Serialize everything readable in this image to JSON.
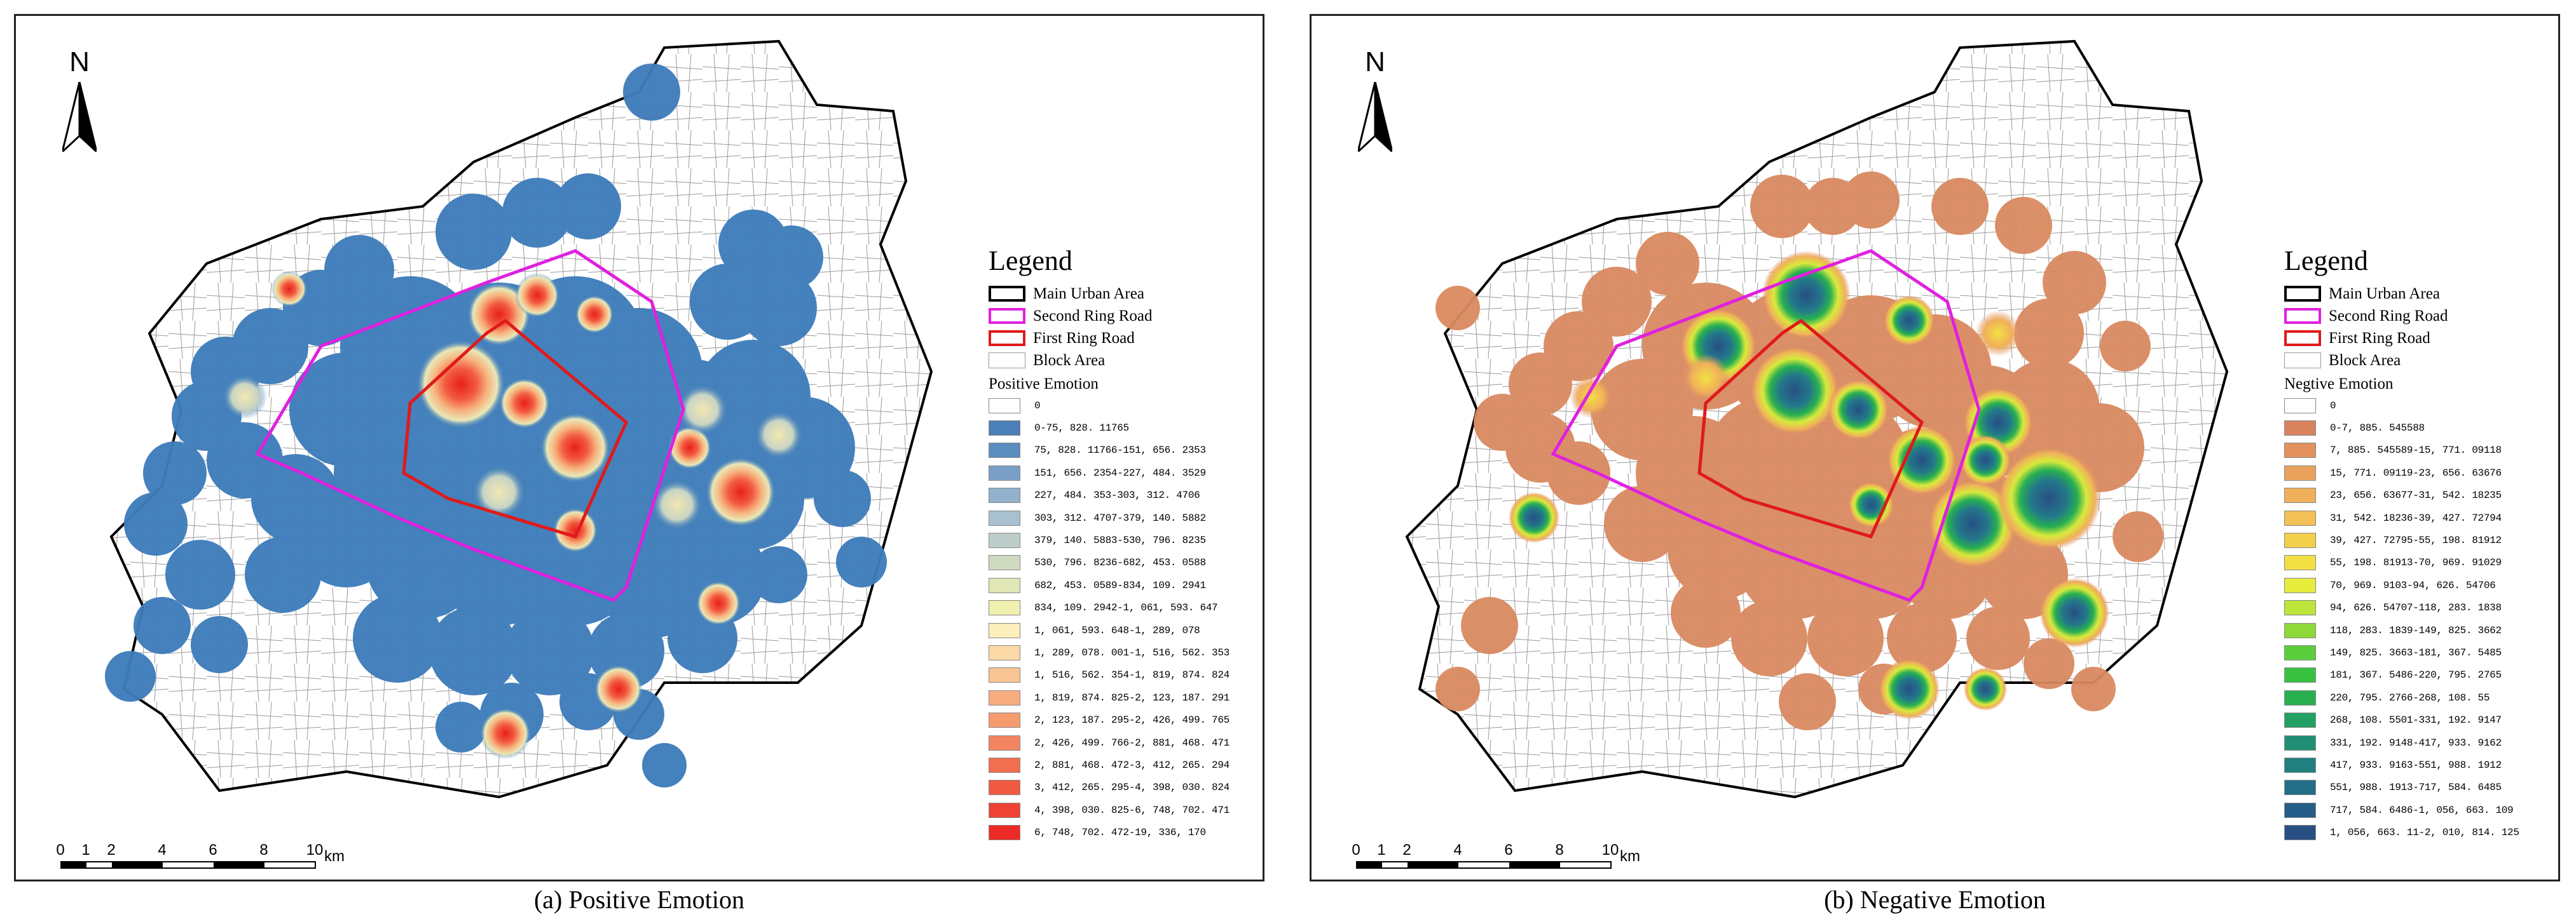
{
  "north_label": "N",
  "scale_bar": {
    "ticks": [
      "0",
      "1",
      "2",
      "4",
      "6",
      "8",
      "10"
    ],
    "unit": "km"
  },
  "legend": {
    "title": "Legend",
    "items": [
      {
        "label": "Main Urban Area",
        "stroke": "#000000"
      },
      {
        "label": "Second Ring Road",
        "stroke": "#e020e0"
      },
      {
        "label": "First Ring Road",
        "stroke": "#e01a1a"
      },
      {
        "label": "Block Area",
        "stroke": "#bbbbbb"
      }
    ]
  },
  "panels": [
    {
      "caption": "(a) Positive Emotion",
      "class_title": "Positive Emotion",
      "background_hotspot_color": "#3e7cba",
      "classes": [
        {
          "label": "0",
          "color": "#ffffff"
        },
        {
          "label": "0-75, 828. 11765",
          "color": "#4a7fb8"
        },
        {
          "label": "75, 828. 11766-151, 656. 2353",
          "color": "#5b8dbf"
        },
        {
          "label": "151, 656. 2354-227, 484. 3529",
          "color": "#7a9fc6"
        },
        {
          "label": "227, 484. 353-303, 312. 4706",
          "color": "#91b1cc"
        },
        {
          "label": "303, 312. 4707-379, 140. 5882",
          "color": "#a8c0cf"
        },
        {
          "label": "379, 140. 5883-530, 796. 8235",
          "color": "#bccdc9"
        },
        {
          "label": "530, 796. 8236-682, 453. 0588",
          "color": "#cfdac0"
        },
        {
          "label": "682, 453. 0589-834, 109. 2941",
          "color": "#e0e6b6"
        },
        {
          "label": "834, 109. 2942-1, 061, 593. 647",
          "color": "#f0f0b0"
        },
        {
          "label": "1, 061, 593. 648-1, 289, 078",
          "color": "#fbefbb"
        },
        {
          "label": "1, 289, 078. 001-1, 516, 562. 353",
          "color": "#fbd9a6"
        },
        {
          "label": "1, 516, 562. 354-1, 819, 874. 824",
          "color": "#f9c493"
        },
        {
          "label": "1, 819, 874. 825-2, 123, 187. 291",
          "color": "#f8ad80"
        },
        {
          "label": "2, 123, 187. 295-2, 426, 499. 765",
          "color": "#f69a70"
        },
        {
          "label": "2, 426, 499. 766-2, 881, 468. 471",
          "color": "#f48460"
        },
        {
          "label": "2, 881, 468. 472-3, 412, 265. 294",
          "color": "#f26e50"
        },
        {
          "label": "3, 412, 265. 295-4, 398, 030. 824",
          "color": "#f05942"
        },
        {
          "label": "4, 398, 030. 825-6, 748, 702. 471",
          "color": "#ee4334"
        },
        {
          "label": "6, 748, 702. 472-19, 336, 170",
          "color": "#ec2a26"
        }
      ]
    },
    {
      "caption": "(b) Negative Emotion",
      "class_title": "Negtive Emotion",
      "background_hotspot_color": "#d98a60",
      "classes": [
        {
          "label": "0",
          "color": "#ffffff"
        },
        {
          "label": "0-7, 885. 545588",
          "color": "#d9825e"
        },
        {
          "label": "7, 885. 545589-15, 771. 09118",
          "color": "#e2905e"
        },
        {
          "label": "15, 771. 09119-23, 656. 63676",
          "color": "#eaa15c"
        },
        {
          "label": "23, 656. 63677-31, 542. 18235",
          "color": "#f0b05a"
        },
        {
          "label": "31, 542. 18236-39, 427. 72794",
          "color": "#f3c055"
        },
        {
          "label": "39, 427. 72795-55, 198. 81912",
          "color": "#f3d04c"
        },
        {
          "label": "55, 198. 81913-70, 969. 91029",
          "color": "#f2e043"
        },
        {
          "label": "70, 969. 9103-94, 626. 54706",
          "color": "#e6ec3c"
        },
        {
          "label": "94, 626. 54707-118, 283. 1838",
          "color": "#bce43a"
        },
        {
          "label": "118, 283. 1839-149, 825. 3662",
          "color": "#8ed83a"
        },
        {
          "label": "149, 825. 3663-181, 367. 5485",
          "color": "#5ccd3c"
        },
        {
          "label": "181, 367. 5486-220, 795. 2765",
          "color": "#38c140"
        },
        {
          "label": "220, 795. 2766-268, 108. 55",
          "color": "#28b050"
        },
        {
          "label": "268, 108. 5501-331, 192. 9147",
          "color": "#22a064"
        },
        {
          "label": "331, 192. 9148-417, 933. 9162",
          "color": "#208f74"
        },
        {
          "label": "417, 933. 9163-551, 988. 1912",
          "color": "#217f80"
        },
        {
          "label": "551, 988. 1913-717, 584. 6485",
          "color": "#236e86"
        },
        {
          "label": "717, 584. 6486-1, 056, 663. 109",
          "color": "#255e88"
        },
        {
          "label": "1, 056, 663. 11-2, 010, 814. 125",
          "color": "#274f84"
        }
      ]
    }
  ]
}
